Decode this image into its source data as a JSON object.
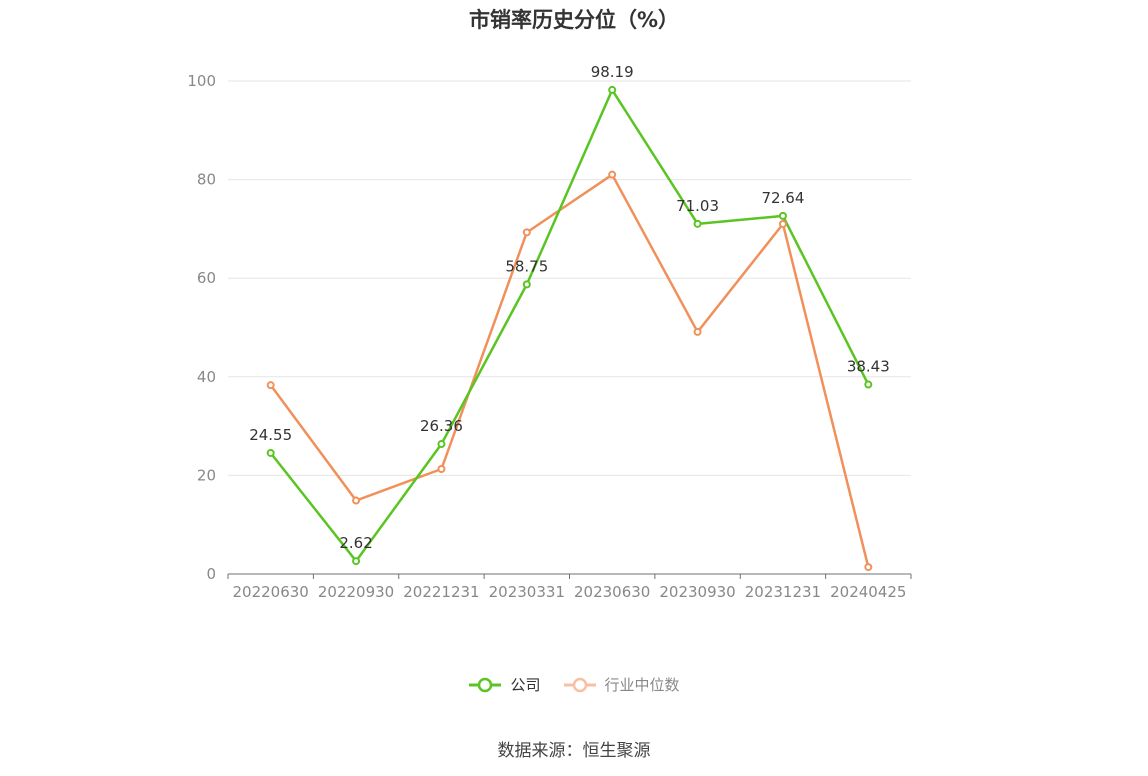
{
  "chart_data": {
    "type": "line",
    "title": "市销率历史分位（%）",
    "categories": [
      "20220630",
      "20220930",
      "20221231",
      "20230331",
      "20230630",
      "20230930",
      "20231231",
      "20240425"
    ],
    "ylim": [
      0,
      100
    ],
    "yticks": [
      0,
      20,
      40,
      60,
      80,
      100
    ],
    "grid": true,
    "legend_position": "bottom",
    "series": [
      {
        "name": "公司",
        "color": "#5ac522",
        "values": [
          24.55,
          2.62,
          26.36,
          58.75,
          98.19,
          71.03,
          72.64,
          38.43
        ],
        "labels": [
          "24.55",
          "2.62",
          "26.36",
          "58.75",
          "98.19",
          "71.03",
          "72.64",
          "38.43"
        ]
      },
      {
        "name": "行业中位数",
        "color": "#f0905a",
        "values": [
          38.3,
          14.9,
          21.3,
          69.3,
          81.0,
          49.1,
          71.0,
          1.4
        ]
      }
    ]
  },
  "legend": {
    "company": "公司",
    "industry": "行业中位数"
  },
  "source": "数据来源：恒生聚源"
}
